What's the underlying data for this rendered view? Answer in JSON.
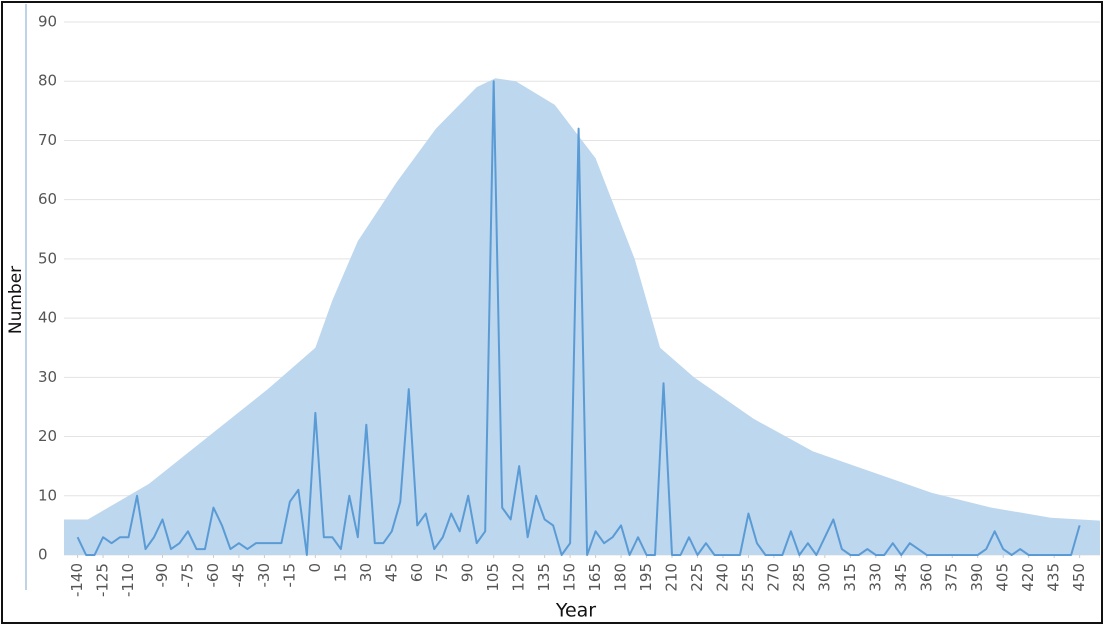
{
  "chart_data": {
    "type": "line",
    "x_label": "Year",
    "y_label": "Number",
    "xlim": [
      -148,
      462
    ],
    "ylim": [
      0,
      90
    ],
    "yticks": [
      0,
      10,
      20,
      30,
      40,
      50,
      60,
      70,
      80,
      90
    ],
    "xticks": [
      -140,
      -125,
      -110,
      -90,
      -75,
      -60,
      -45,
      -30,
      -15,
      0,
      15,
      30,
      45,
      60,
      75,
      90,
      105,
      120,
      135,
      150,
      165,
      180,
      195,
      210,
      225,
      240,
      255,
      270,
      285,
      300,
      315,
      330,
      345,
      360,
      375,
      390,
      405,
      420,
      435,
      450
    ],
    "grid": true,
    "series": [
      {
        "type": "area",
        "color": "#bdd7ee",
        "x": [
          -148,
          -134,
          -98,
          -63,
          -28,
          0,
          10,
          25,
          48,
          71,
          95,
          106,
          118,
          141,
          165,
          188,
          203,
          223,
          258,
          293,
          328,
          363,
          398,
          433,
          462
        ],
        "values": [
          6,
          6,
          12,
          20,
          28,
          35,
          43,
          53,
          63,
          72,
          79,
          80.5,
          80,
          76,
          67,
          50,
          35,
          30,
          23,
          17.5,
          14,
          10.5,
          8,
          6.3,
          5.8
        ]
      },
      {
        "type": "line",
        "color": "#5b9bd5",
        "x": [
          -140,
          -135,
          -130,
          -125,
          -120,
          -115,
          -110,
          -105,
          -100,
          -95,
          -90,
          -85,
          -80,
          -75,
          -70,
          -65,
          -60,
          -55,
          -50,
          -45,
          -40,
          -35,
          -30,
          -25,
          -20,
          -15,
          -10,
          -5,
          0,
          5,
          10,
          15,
          20,
          25,
          30,
          35,
          40,
          45,
          50,
          55,
          60,
          65,
          70,
          75,
          80,
          85,
          90,
          95,
          100,
          105,
          110,
          115,
          120,
          125,
          130,
          135,
          140,
          145,
          150,
          155,
          160,
          165,
          170,
          175,
          180,
          185,
          190,
          195,
          200,
          205,
          210,
          215,
          220,
          225,
          230,
          235,
          240,
          245,
          250,
          255,
          260,
          265,
          270,
          275,
          280,
          285,
          290,
          295,
          300,
          305,
          310,
          315,
          320,
          325,
          330,
          335,
          340,
          345,
          350,
          355,
          360,
          365,
          370,
          375,
          380,
          385,
          390,
          395,
          400,
          405,
          410,
          415,
          420,
          425,
          430,
          435,
          440,
          445,
          450
        ],
        "values": [
          3,
          0,
          0,
          3,
          2,
          3,
          3,
          10,
          1,
          3,
          6,
          1,
          2,
          4,
          1,
          1,
          8,
          5,
          1,
          2,
          1,
          2,
          2,
          2,
          2,
          9,
          11,
          0,
          24,
          3,
          3,
          1,
          10,
          3,
          22,
          2,
          2,
          4,
          9,
          28,
          5,
          7,
          1,
          3,
          7,
          4,
          10,
          2,
          4,
          80,
          8,
          6,
          15,
          3,
          10,
          6,
          5,
          0,
          2,
          72,
          0,
          4,
          2,
          3,
          5,
          0,
          3,
          0,
          0,
          29,
          0,
          0,
          3,
          0,
          2,
          0,
          0,
          0,
          0,
          7,
          2,
          0,
          0,
          0,
          4,
          0,
          2,
          0,
          3,
          6,
          1,
          0,
          0,
          1,
          0,
          0,
          2,
          0,
          2,
          1,
          0,
          0,
          0,
          0,
          0,
          0,
          0,
          1,
          4,
          1,
          0,
          1,
          0,
          0,
          0,
          0,
          0,
          0,
          5
        ]
      }
    ]
  }
}
